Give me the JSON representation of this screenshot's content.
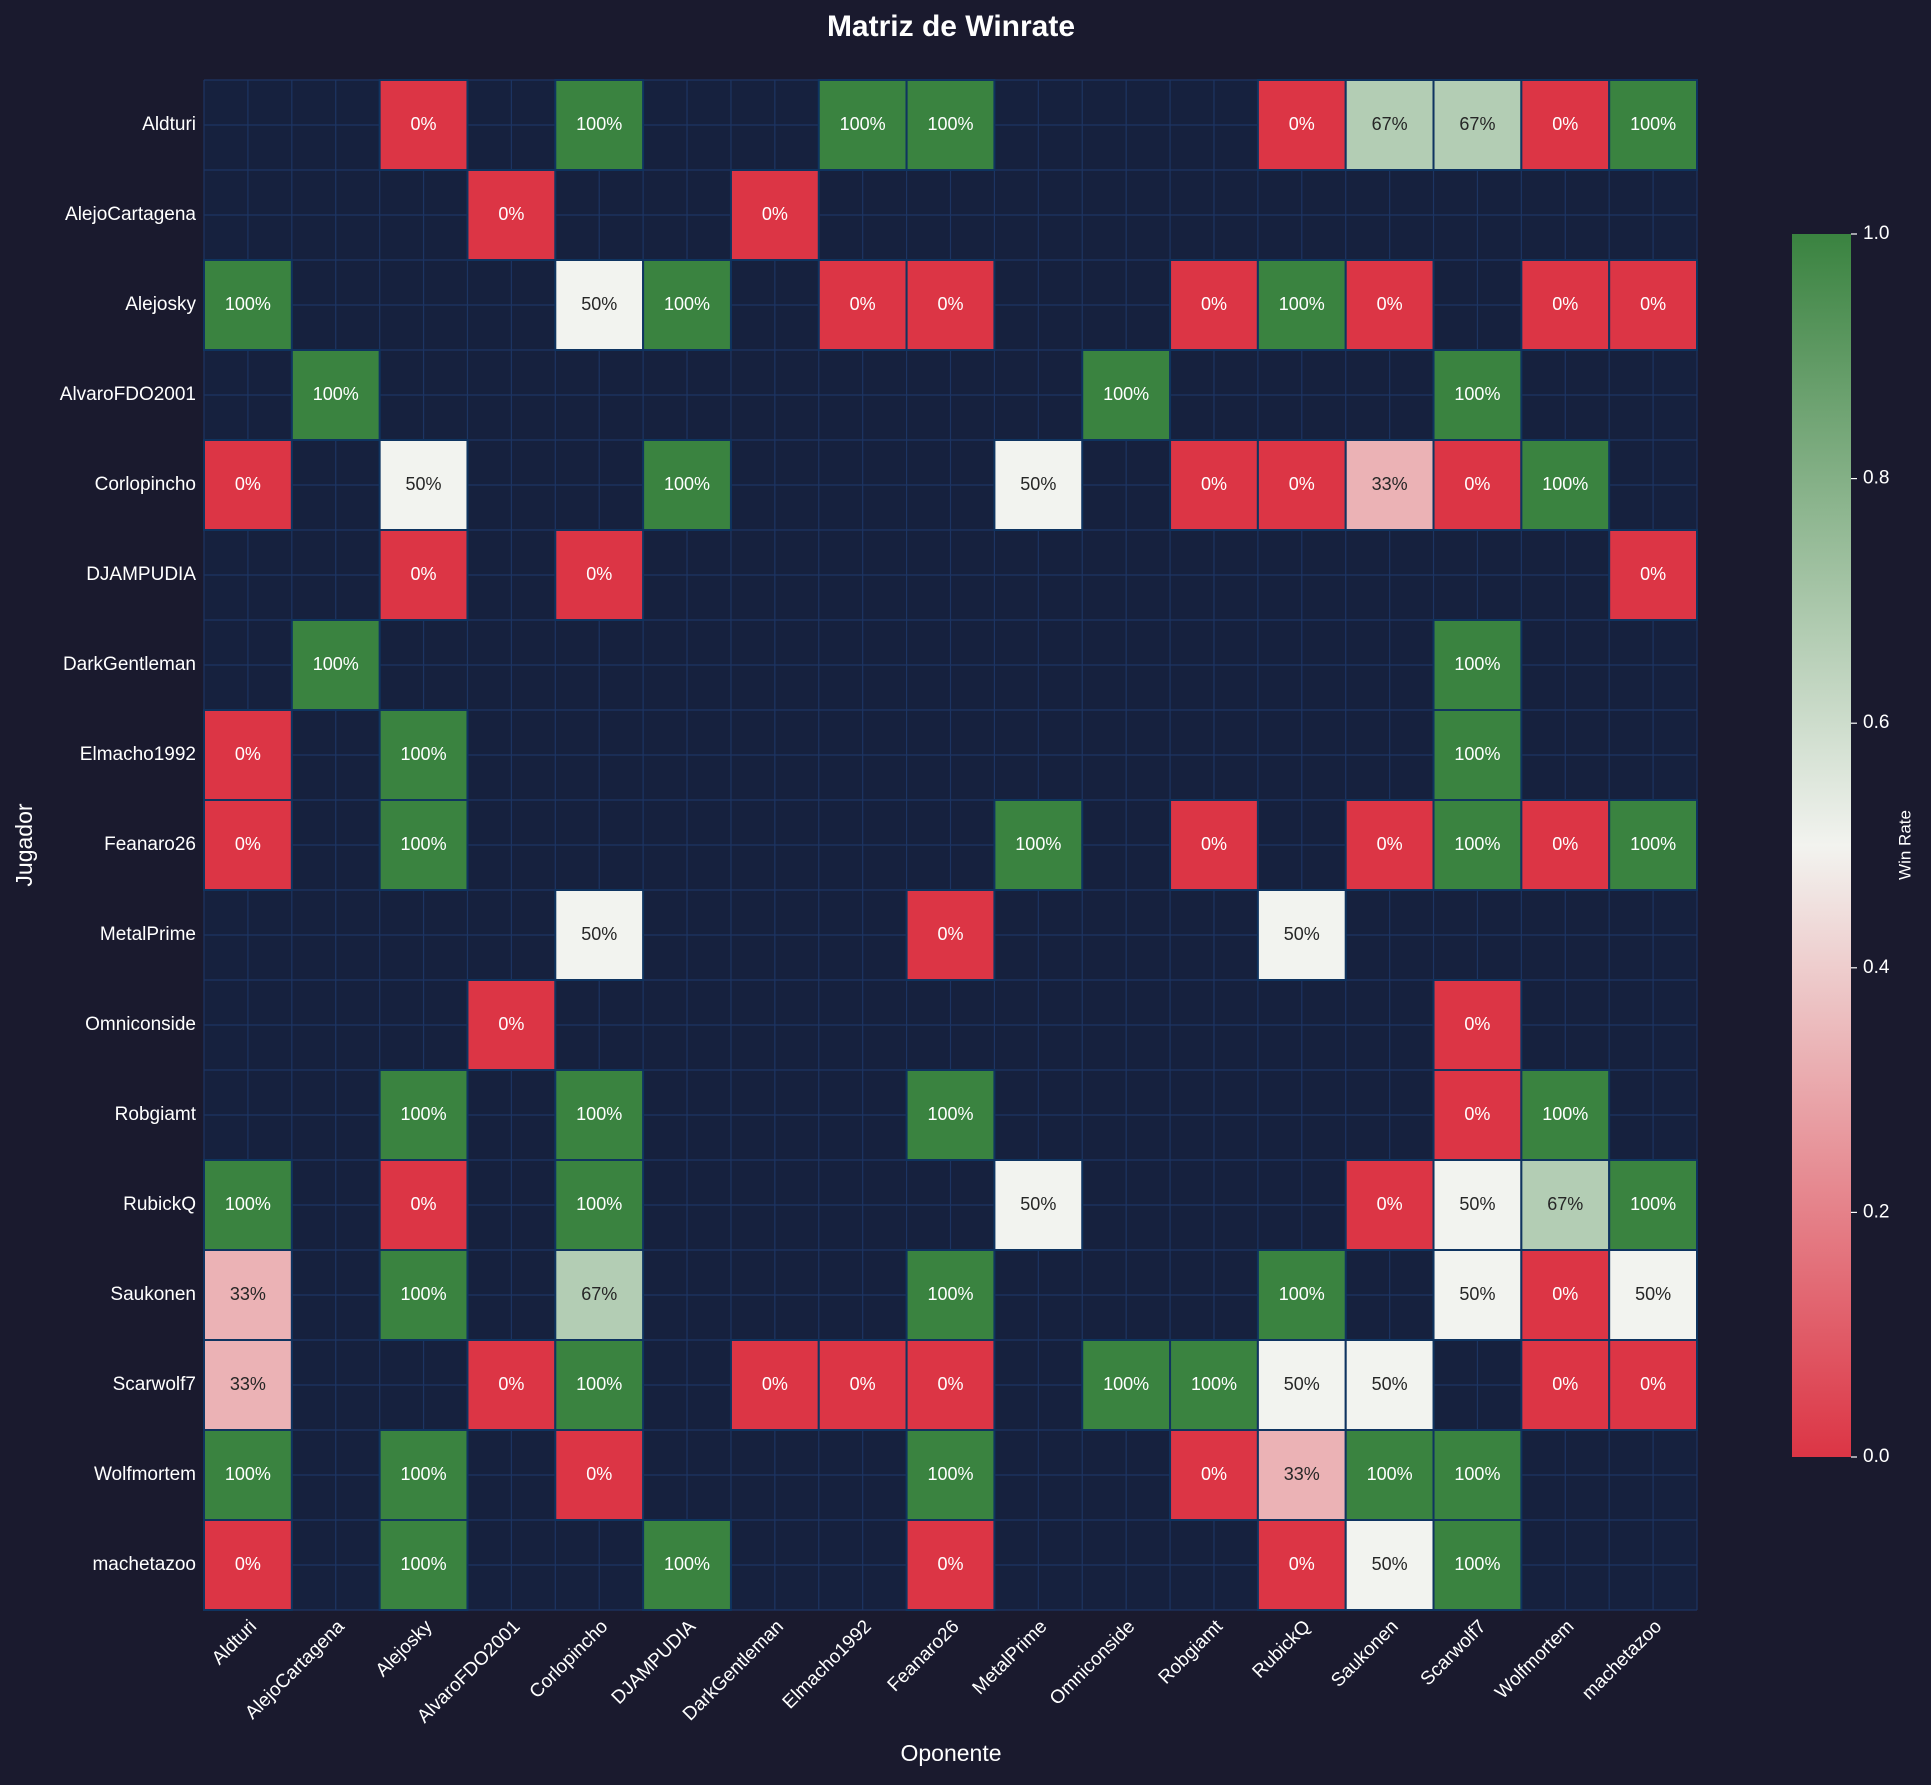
{
  "chart_data": {
    "type": "heatmap",
    "title": "Matriz de Winrate",
    "x_label": "Oponente",
    "y_label": "Jugador",
    "x_categories": [
      "Aldturi",
      "AlejoCartagena",
      "Alejosky",
      "AlvaroFDO2001",
      "Corlopincho",
      "DJAMPUDIA",
      "DarkGentleman",
      "Elmacho1992",
      "Feanaro26",
      "MetalPrime",
      "Omniconside",
      "Robgiamt",
      "RubickQ",
      "Saukonen",
      "Scarwolf7",
      "Wolfmortem",
      "machetazoo"
    ],
    "y_categories": [
      "Aldturi",
      "AlejoCartagena",
      "Alejosky",
      "AlvaroFDO2001",
      "Corlopincho",
      "DJAMPUDIA",
      "DarkGentleman",
      "Elmacho1992",
      "Feanaro26",
      "MetalPrime",
      "Omniconside",
      "Robgiamt",
      "RubickQ",
      "Saukonen",
      "Scarwolf7",
      "Wolfmortem",
      "machetazoo"
    ],
    "values": [
      [
        null,
        null,
        0,
        null,
        1,
        null,
        null,
        1,
        1,
        null,
        null,
        null,
        0,
        0.67,
        0.67,
        0,
        1
      ],
      [
        null,
        null,
        null,
        0,
        null,
        null,
        0,
        null,
        null,
        null,
        null,
        null,
        null,
        null,
        null,
        null,
        null
      ],
      [
        1,
        null,
        null,
        null,
        0.5,
        1,
        null,
        0,
        0,
        null,
        null,
        0,
        1,
        0,
        null,
        0,
        0
      ],
      [
        null,
        1,
        null,
        null,
        null,
        null,
        null,
        null,
        null,
        null,
        1,
        null,
        null,
        null,
        1,
        null,
        null
      ],
      [
        0,
        null,
        0.5,
        null,
        null,
        1,
        null,
        null,
        null,
        0.5,
        null,
        0,
        0,
        0.33,
        0,
        1,
        null
      ],
      [
        null,
        null,
        0,
        null,
        0,
        null,
        null,
        null,
        null,
        null,
        null,
        null,
        null,
        null,
        null,
        null,
        0
      ],
      [
        null,
        1,
        null,
        null,
        null,
        null,
        null,
        null,
        null,
        null,
        null,
        null,
        null,
        null,
        1,
        null,
        null
      ],
      [
        0,
        null,
        1,
        null,
        null,
        null,
        null,
        null,
        null,
        null,
        null,
        null,
        null,
        null,
        1,
        null,
        null
      ],
      [
        0,
        null,
        1,
        null,
        null,
        null,
        null,
        null,
        null,
        1,
        null,
        0,
        null,
        0,
        1,
        0,
        1
      ],
      [
        null,
        null,
        null,
        null,
        0.5,
        null,
        null,
        null,
        0,
        null,
        null,
        null,
        0.5,
        null,
        null,
        null,
        null
      ],
      [
        null,
        null,
        null,
        0,
        null,
        null,
        null,
        null,
        null,
        null,
        null,
        null,
        null,
        null,
        0,
        null,
        null
      ],
      [
        null,
        null,
        1,
        null,
        1,
        null,
        null,
        null,
        1,
        null,
        null,
        null,
        null,
        null,
        0,
        1,
        null
      ],
      [
        1,
        null,
        0,
        null,
        1,
        null,
        null,
        null,
        null,
        0.5,
        null,
        null,
        null,
        0,
        0.5,
        0.67,
        1
      ],
      [
        0.33,
        null,
        1,
        null,
        0.67,
        null,
        null,
        null,
        1,
        null,
        null,
        null,
        1,
        null,
        0.5,
        0,
        0.5
      ],
      [
        0.33,
        null,
        null,
        0,
        1,
        null,
        0,
        0,
        0,
        null,
        1,
        1,
        0.5,
        0.5,
        null,
        0,
        0
      ],
      [
        1,
        null,
        1,
        null,
        0,
        null,
        null,
        null,
        1,
        null,
        null,
        0,
        0.33,
        1,
        1,
        null,
        null
      ],
      [
        0,
        null,
        1,
        null,
        null,
        1,
        null,
        null,
        0,
        null,
        null,
        null,
        0,
        0.5,
        1,
        null,
        null
      ]
    ],
    "value_labels": [
      [
        null,
        null,
        "0%",
        null,
        "100%",
        null,
        null,
        "100%",
        "100%",
        null,
        null,
        null,
        "0%",
        "67%",
        "67%",
        "0%",
        "100%"
      ],
      [
        null,
        null,
        null,
        "0%",
        null,
        null,
        "0%",
        null,
        null,
        null,
        null,
        null,
        null,
        null,
        null,
        null,
        null
      ],
      [
        "100%",
        null,
        null,
        null,
        "50%",
        "100%",
        null,
        "0%",
        "0%",
        null,
        null,
        "0%",
        "100%",
        "0%",
        null,
        "0%",
        "0%"
      ],
      [
        null,
        "100%",
        null,
        null,
        null,
        null,
        null,
        null,
        null,
        null,
        "100%",
        null,
        null,
        null,
        "100%",
        null,
        null
      ],
      [
        "0%",
        null,
        "50%",
        null,
        null,
        "100%",
        null,
        null,
        null,
        "50%",
        null,
        "0%",
        "0%",
        "33%",
        "0%",
        "100%",
        null
      ],
      [
        null,
        null,
        "0%",
        null,
        "0%",
        null,
        null,
        null,
        null,
        null,
        null,
        null,
        null,
        null,
        null,
        null,
        "0%"
      ],
      [
        null,
        "100%",
        null,
        null,
        null,
        null,
        null,
        null,
        null,
        null,
        null,
        null,
        null,
        null,
        "100%",
        null,
        null
      ],
      [
        "0%",
        null,
        "100%",
        null,
        null,
        null,
        null,
        null,
        null,
        null,
        null,
        null,
        null,
        null,
        "100%",
        null,
        null
      ],
      [
        "0%",
        null,
        "100%",
        null,
        null,
        null,
        null,
        null,
        null,
        "100%",
        null,
        "0%",
        null,
        "0%",
        "100%",
        "0%",
        "100%"
      ],
      [
        null,
        null,
        null,
        null,
        "50%",
        null,
        null,
        null,
        "0%",
        null,
        null,
        null,
        "50%",
        null,
        null,
        null,
        null
      ],
      [
        null,
        null,
        null,
        "0%",
        null,
        null,
        null,
        null,
        null,
        null,
        null,
        null,
        null,
        null,
        "0%",
        null,
        null
      ],
      [
        null,
        null,
        "100%",
        null,
        "100%",
        null,
        null,
        null,
        "100%",
        null,
        null,
        null,
        null,
        null,
        "0%",
        "100%",
        null
      ],
      [
        "100%",
        null,
        "0%",
        null,
        "100%",
        null,
        null,
        null,
        null,
        "50%",
        null,
        null,
        null,
        "0%",
        "50%",
        "67%",
        "100%"
      ],
      [
        "33%",
        null,
        "100%",
        null,
        "67%",
        null,
        null,
        null,
        "100%",
        null,
        null,
        null,
        "100%",
        null,
        "50%",
        "0%",
        "50%"
      ],
      [
        "33%",
        null,
        null,
        "0%",
        "100%",
        null,
        "0%",
        "0%",
        "0%",
        null,
        "100%",
        "100%",
        "50%",
        "50%",
        null,
        "0%",
        "0%"
      ],
      [
        "100%",
        null,
        "100%",
        null,
        "0%",
        null,
        null,
        null,
        "100%",
        null,
        null,
        "0%",
        "33%",
        "100%",
        "100%",
        null,
        null
      ],
      [
        "0%",
        null,
        "100%",
        null,
        null,
        "100%",
        null,
        null,
        "0%",
        null,
        null,
        null,
        "0%",
        "50%",
        "100%",
        null,
        null
      ]
    ],
    "colormap": [
      "#dc3545",
      "#f2f3ef",
      "#3a8340"
    ],
    "zlim": [
      0,
      1
    ],
    "zticks": [
      {
        "value": 0,
        "label": "0.0"
      },
      {
        "value": 0.2,
        "label": "0.2"
      },
      {
        "value": 0.4,
        "label": "0.4"
      },
      {
        "value": 0.6,
        "label": "0.6"
      },
      {
        "value": 0.8,
        "label": "0.8"
      },
      {
        "value": 1,
        "label": "1.0"
      }
    ],
    "colorbar_label": "Win Rate"
  }
}
